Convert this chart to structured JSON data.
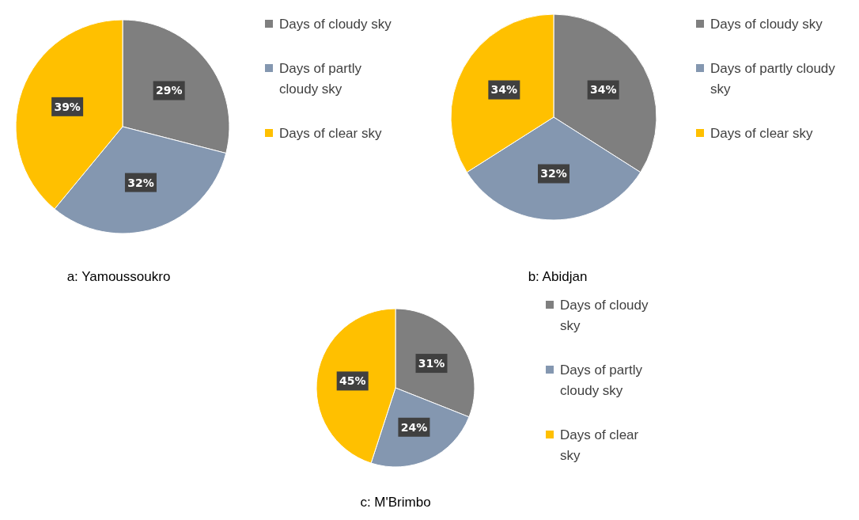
{
  "chart_data": [
    {
      "type": "pie",
      "title": "a: Yamoussoukro",
      "categories": [
        "Days of cloudy sky",
        "Days of partly cloudy sky",
        "Days of clear sky"
      ],
      "values": [
        29,
        32,
        39
      ],
      "colors": [
        "#7f7f7f",
        "#8497b0",
        "#ffc000"
      ],
      "value_labels": [
        "29%",
        "32%",
        "39%"
      ],
      "legend": "right"
    },
    {
      "type": "pie",
      "title": "b: Abidjan",
      "categories": [
        "Days of cloudy sky",
        "Days of partly cloudy sky",
        "Days of clear sky"
      ],
      "values": [
        34,
        32,
        34
      ],
      "colors": [
        "#7f7f7f",
        "#8497b0",
        "#ffc000"
      ],
      "value_labels": [
        "34%",
        "32%",
        "34%"
      ],
      "legend": "right"
    },
    {
      "type": "pie",
      "title": "c: M'Brimbo",
      "categories": [
        "Days of cloudy sky",
        "Days of partly cloudy sky",
        "Days of clear sky"
      ],
      "values": [
        31,
        24,
        45
      ],
      "colors": [
        "#7f7f7f",
        "#8497b0",
        "#ffc000"
      ],
      "value_labels": [
        "31%",
        "24%",
        "45%"
      ],
      "legend": "right"
    }
  ]
}
